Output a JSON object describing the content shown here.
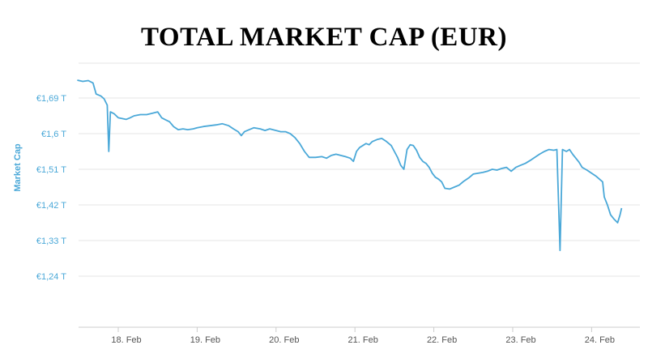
{
  "chart_data": {
    "type": "line",
    "title": "TOTAL MARKET CAP (EUR)",
    "ylabel": "Market Cap",
    "xlabel": "",
    "ylim": [
      1.15,
      1.78
    ],
    "xlim": [
      17.48,
      24.38
    ],
    "grid": true,
    "line_color": "#4aa8d8",
    "y_ticks": [
      {
        "value": 1.69,
        "label": "€1,69 T"
      },
      {
        "value": 1.6,
        "label": "€1,6 T"
      },
      {
        "value": 1.51,
        "label": "€1,51 T"
      },
      {
        "value": 1.42,
        "label": "€1,42 T"
      },
      {
        "value": 1.33,
        "label": "€1,33 T"
      },
      {
        "value": 1.24,
        "label": "€1,24 T"
      }
    ],
    "x_ticks": [
      {
        "value": 18,
        "label": "18. Feb"
      },
      {
        "value": 19,
        "label": "19. Feb"
      },
      {
        "value": 20,
        "label": "20. Feb"
      },
      {
        "value": 21,
        "label": "21. Feb"
      },
      {
        "value": 22,
        "label": "22. Feb"
      },
      {
        "value": 23,
        "label": "23. Feb"
      },
      {
        "value": 24,
        "label": "24. Feb"
      }
    ],
    "series": [
      {
        "points": [
          [
            17.48,
            1.735
          ],
          [
            17.55,
            1.732
          ],
          [
            17.62,
            1.734
          ],
          [
            17.68,
            1.728
          ],
          [
            17.72,
            1.7
          ],
          [
            17.78,
            1.695
          ],
          [
            17.82,
            1.688
          ],
          [
            17.86,
            1.672
          ],
          [
            17.88,
            1.555
          ],
          [
            17.9,
            1.655
          ],
          [
            17.95,
            1.65
          ],
          [
            18.0,
            1.64
          ],
          [
            18.05,
            1.638
          ],
          [
            18.1,
            1.636
          ],
          [
            18.15,
            1.64
          ],
          [
            18.2,
            1.645
          ],
          [
            18.28,
            1.648
          ],
          [
            18.36,
            1.648
          ],
          [
            18.44,
            1.652
          ],
          [
            18.5,
            1.655
          ],
          [
            18.55,
            1.64
          ],
          [
            18.6,
            1.635
          ],
          [
            18.65,
            1.63
          ],
          [
            18.7,
            1.618
          ],
          [
            18.76,
            1.61
          ],
          [
            18.82,
            1.612
          ],
          [
            18.88,
            1.61
          ],
          [
            18.95,
            1.612
          ],
          [
            19.0,
            1.615
          ],
          [
            19.08,
            1.618
          ],
          [
            19.16,
            1.62
          ],
          [
            19.24,
            1.622
          ],
          [
            19.32,
            1.625
          ],
          [
            19.4,
            1.62
          ],
          [
            19.46,
            1.612
          ],
          [
            19.52,
            1.605
          ],
          [
            19.56,
            1.595
          ],
          [
            19.6,
            1.605
          ],
          [
            19.66,
            1.61
          ],
          [
            19.72,
            1.615
          ],
          [
            19.8,
            1.612
          ],
          [
            19.86,
            1.608
          ],
          [
            19.92,
            1.612
          ],
          [
            20.0,
            1.608
          ],
          [
            20.06,
            1.605
          ],
          [
            20.12,
            1.605
          ],
          [
            20.18,
            1.6
          ],
          [
            20.24,
            1.59
          ],
          [
            20.3,
            1.575
          ],
          [
            20.36,
            1.555
          ],
          [
            20.42,
            1.54
          ],
          [
            20.5,
            1.54
          ],
          [
            20.58,
            1.542
          ],
          [
            20.64,
            1.538
          ],
          [
            20.7,
            1.545
          ],
          [
            20.76,
            1.548
          ],
          [
            20.82,
            1.545
          ],
          [
            20.88,
            1.542
          ],
          [
            20.94,
            1.538
          ],
          [
            20.98,
            1.53
          ],
          [
            21.02,
            1.555
          ],
          [
            21.06,
            1.565
          ],
          [
            21.1,
            1.57
          ],
          [
            21.14,
            1.575
          ],
          [
            21.18,
            1.572
          ],
          [
            21.22,
            1.58
          ],
          [
            21.28,
            1.585
          ],
          [
            21.34,
            1.588
          ],
          [
            21.4,
            1.58
          ],
          [
            21.46,
            1.57
          ],
          [
            21.5,
            1.555
          ],
          [
            21.54,
            1.54
          ],
          [
            21.58,
            1.52
          ],
          [
            21.62,
            1.51
          ],
          [
            21.66,
            1.56
          ],
          [
            21.7,
            1.572
          ],
          [
            21.74,
            1.57
          ],
          [
            21.78,
            1.558
          ],
          [
            21.82,
            1.54
          ],
          [
            21.86,
            1.53
          ],
          [
            21.9,
            1.525
          ],
          [
            21.94,
            1.515
          ],
          [
            21.98,
            1.5
          ],
          [
            22.02,
            1.49
          ],
          [
            22.06,
            1.485
          ],
          [
            22.1,
            1.478
          ],
          [
            22.14,
            1.462
          ],
          [
            22.2,
            1.46
          ],
          [
            22.26,
            1.465
          ],
          [
            22.32,
            1.47
          ],
          [
            22.38,
            1.48
          ],
          [
            22.44,
            1.488
          ],
          [
            22.5,
            1.498
          ],
          [
            22.56,
            1.5
          ],
          [
            22.62,
            1.502
          ],
          [
            22.68,
            1.505
          ],
          [
            22.74,
            1.51
          ],
          [
            22.8,
            1.508
          ],
          [
            22.86,
            1.512
          ],
          [
            22.92,
            1.515
          ],
          [
            22.98,
            1.505
          ],
          [
            23.04,
            1.515
          ],
          [
            23.1,
            1.52
          ],
          [
            23.16,
            1.525
          ],
          [
            23.22,
            1.532
          ],
          [
            23.28,
            1.54
          ],
          [
            23.34,
            1.548
          ],
          [
            23.4,
            1.555
          ],
          [
            23.46,
            1.56
          ],
          [
            23.52,
            1.558
          ],
          [
            23.56,
            1.56
          ],
          [
            23.6,
            1.305
          ],
          [
            23.63,
            1.56
          ],
          [
            23.68,
            1.555
          ],
          [
            23.72,
            1.56
          ],
          [
            23.76,
            1.548
          ],
          [
            23.8,
            1.538
          ],
          [
            23.84,
            1.528
          ],
          [
            23.88,
            1.515
          ],
          [
            23.94,
            1.508
          ],
          [
            24.0,
            1.5
          ],
          [
            24.06,
            1.492
          ],
          [
            24.1,
            1.485
          ],
          [
            24.14,
            1.478
          ],
          [
            24.16,
            1.44
          ],
          [
            24.2,
            1.42
          ],
          [
            24.24,
            1.395
          ],
          [
            24.28,
            1.385
          ],
          [
            24.33,
            1.375
          ],
          [
            24.36,
            1.395
          ],
          [
            24.38,
            1.412
          ]
        ]
      }
    ]
  }
}
